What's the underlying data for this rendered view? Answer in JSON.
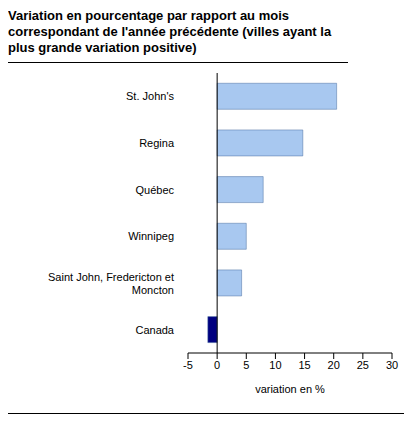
{
  "chart_data": {
    "type": "bar",
    "title": "Variation en pourcentage par rapport au mois correspondant de l'année précédente (villes ayant la plus grande variation positive)",
    "orientation": "horizontal",
    "categories": [
      "St. John's",
      "Regina",
      "Québec",
      "Winnipeg",
      "Saint John, Fredericton et Moncton",
      "Canada"
    ],
    "values": [
      20.5,
      14.7,
      7.9,
      5.0,
      4.2,
      -1.6
    ],
    "colors": [
      "#a8c8f0",
      "#a8c8f0",
      "#a8c8f0",
      "#a8c8f0",
      "#a8c8f0",
      "#000080"
    ],
    "xlabel": "variation en %",
    "xlim": [
      -5,
      30
    ],
    "xticks": [
      -5,
      0,
      5,
      10,
      15,
      20,
      25,
      30
    ],
    "grid": false
  }
}
